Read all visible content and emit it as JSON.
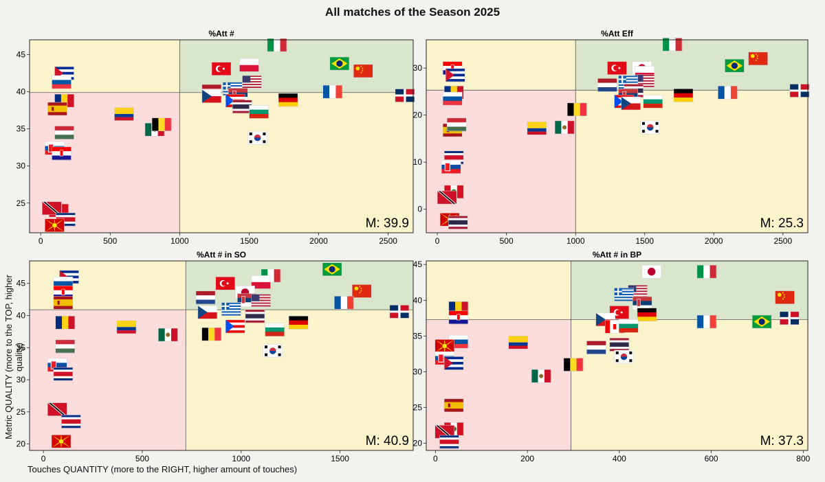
{
  "figure": {
    "title": "All matches of the Season 2025",
    "xlabel": "Touches QUANTITY (more to the RIGHT, higher amount of touches)",
    "ylabel": "Metric QUALITY (more to the TOP, higher quality)"
  },
  "colors": {
    "good": "#d9e6cc",
    "mid": "#fbf3cc",
    "bad": "#fddcdc",
    "background": "#f2f2ee"
  },
  "chart_data": [
    {
      "type": "scatter",
      "title": "%Att #",
      "median_label": "M: 39.9",
      "median_y": 39.9,
      "median_x": 1000,
      "xlim": [
        -80,
        2680
      ],
      "ylim": [
        21,
        47
      ],
      "xticks": [
        0,
        500,
        1000,
        1500,
        2000,
        2500
      ],
      "yticks": [
        25,
        30,
        35,
        40,
        45
      ],
      "points": [
        {
          "flag": "italy",
          "x": 1700,
          "y": 46.3
        },
        {
          "flag": "brazil",
          "x": 2150,
          "y": 43.8
        },
        {
          "flag": "china",
          "x": 2320,
          "y": 42.8
        },
        {
          "flag": "turkey",
          "x": 1300,
          "y": 43.1
        },
        {
          "flag": "poland",
          "x": 1500,
          "y": 43.6
        },
        {
          "flag": "usa",
          "x": 1520,
          "y": 41.3
        },
        {
          "flag": "cuba",
          "x": 170,
          "y": 42.5
        },
        {
          "flag": "slovenia",
          "x": 150,
          "y": 41.3
        },
        {
          "flag": "netherlands",
          "x": 1230,
          "y": 40.1
        },
        {
          "flag": "greece",
          "x": 1380,
          "y": 40.4
        },
        {
          "flag": "serbia",
          "x": 1420,
          "y": 39.6
        },
        {
          "flag": "czech",
          "x": 1230,
          "y": 39.4
        },
        {
          "flag": "puerto_rico",
          "x": 1400,
          "y": 38.8
        },
        {
          "flag": "thailand",
          "x": 1450,
          "y": 38.0
        },
        {
          "flag": "bulgaria",
          "x": 1570,
          "y": 37.3
        },
        {
          "flag": "france",
          "x": 2100,
          "y": 40.0
        },
        {
          "flag": "dominican",
          "x": 2620,
          "y": 39.5
        },
        {
          "flag": "germany",
          "x": 1780,
          "y": 38.9
        },
        {
          "flag": "romania",
          "x": 170,
          "y": 38.8
        },
        {
          "flag": "spain",
          "x": 120,
          "y": 37.7
        },
        {
          "flag": "colombia",
          "x": 600,
          "y": 37.0
        },
        {
          "flag": "mexico",
          "x": 820,
          "y": 34.9
        },
        {
          "flag": "belgium",
          "x": 870,
          "y": 35.6
        },
        {
          "flag": "hungary",
          "x": 170,
          "y": 34.5
        },
        {
          "flag": "korea",
          "x": 1560,
          "y": 33.8
        },
        {
          "flag": "slovakia",
          "x": 100,
          "y": 32.4
        },
        {
          "flag": "croatia",
          "x": 150,
          "y": 31.7
        },
        {
          "flag": "peru",
          "x": 130,
          "y": 24.0
        },
        {
          "flag": "trinidad",
          "x": 80,
          "y": 24.3
        },
        {
          "flag": "costa_rica",
          "x": 180,
          "y": 22.8
        },
        {
          "flag": "north_macedonia",
          "x": 100,
          "y": 22.0
        }
      ]
    },
    {
      "type": "scatter",
      "title": "%Att Eff",
      "median_label": "M: 25.3",
      "median_y": 25.3,
      "median_x": 1000,
      "xlim": [
        -80,
        2680
      ],
      "ylim": [
        -5,
        36
      ],
      "xticks": [
        0,
        500,
        1000,
        1500,
        2000,
        2500
      ],
      "yticks": [
        0,
        10,
        20,
        30
      ],
      "points": [
        {
          "flag": "italy",
          "x": 1700,
          "y": 35.0
        },
        {
          "flag": "china",
          "x": 2320,
          "y": 32.0
        },
        {
          "flag": "brazil",
          "x": 2150,
          "y": 30.5
        },
        {
          "flag": "turkey",
          "x": 1300,
          "y": 30.0
        },
        {
          "flag": "japan",
          "x": 1480,
          "y": 30.0
        },
        {
          "flag": "poland",
          "x": 1500,
          "y": 29.0
        },
        {
          "flag": "croatia",
          "x": 110,
          "y": 30.0
        },
        {
          "flag": "cuba",
          "x": 130,
          "y": 28.5
        },
        {
          "flag": "usa",
          "x": 1500,
          "y": 27.2
        },
        {
          "flag": "greece",
          "x": 1380,
          "y": 27.0
        },
        {
          "flag": "netherlands",
          "x": 1230,
          "y": 26.4
        },
        {
          "flag": "thailand",
          "x": 1420,
          "y": 25.2
        },
        {
          "flag": "romania",
          "x": 120,
          "y": 24.8
        },
        {
          "flag": "slovenia",
          "x": 110,
          "y": 23.5
        },
        {
          "flag": "dominican",
          "x": 2620,
          "y": 25.2
        },
        {
          "flag": "france",
          "x": 2100,
          "y": 24.8
        },
        {
          "flag": "germany",
          "x": 1780,
          "y": 24.2
        },
        {
          "flag": "serbia",
          "x": 1380,
          "y": 24.2
        },
        {
          "flag": "puerto_rico",
          "x": 1350,
          "y": 22.9
        },
        {
          "flag": "bulgaria",
          "x": 1560,
          "y": 22.9
        },
        {
          "flag": "czech",
          "x": 1400,
          "y": 22.5
        },
        {
          "flag": "belgium",
          "x": 1010,
          "y": 21.2
        },
        {
          "flag": "spain",
          "x": 110,
          "y": 16.8
        },
        {
          "flag": "hungary",
          "x": 140,
          "y": 18.0
        },
        {
          "flag": "colombia",
          "x": 720,
          "y": 17.2
        },
        {
          "flag": "mexico",
          "x": 920,
          "y": 17.4
        },
        {
          "flag": "korea",
          "x": 1540,
          "y": 17.4
        },
        {
          "flag": "costa_rica",
          "x": 120,
          "y": 11.0
        },
        {
          "flag": "slovakia",
          "x": 100,
          "y": 9.0
        },
        {
          "flag": "peru",
          "x": 120,
          "y": 3.7
        },
        {
          "flag": "trinidad",
          "x": 70,
          "y": 2.5
        },
        {
          "flag": "north_macedonia",
          "x": 90,
          "y": -2.2
        },
        {
          "flag": "thailand_2",
          "x": 150,
          "y": -2.8
        }
      ]
    },
    {
      "type": "scatter",
      "title": "%Att # in SO",
      "median_label": "M: 40.9",
      "median_y": 40.9,
      "median_x": 720,
      "xlim": [
        -70,
        1870
      ],
      "ylim": [
        19,
        48.5
      ],
      "xticks": [
        0,
        500,
        1000,
        1500
      ],
      "yticks": [
        20,
        25,
        30,
        35,
        40,
        45
      ],
      "points": [
        {
          "flag": "brazil",
          "x": 1460,
          "y": 47.2
        },
        {
          "flag": "italy",
          "x": 1150,
          "y": 46.2
        },
        {
          "flag": "cuba",
          "x": 130,
          "y": 46.0
        },
        {
          "flag": "slovenia",
          "x": 100,
          "y": 45.0
        },
        {
          "flag": "turkey",
          "x": 920,
          "y": 45.0
        },
        {
          "flag": "poland",
          "x": 1100,
          "y": 45.2
        },
        {
          "flag": "china",
          "x": 1610,
          "y": 43.8
        },
        {
          "flag": "croatia",
          "x": 100,
          "y": 43.6
        },
        {
          "flag": "spain",
          "x": 100,
          "y": 42.0
        },
        {
          "flag": "netherlands",
          "x": 820,
          "y": 42.8
        },
        {
          "flag": "japan",
          "x": 1020,
          "y": 43.6
        },
        {
          "flag": "serbia",
          "x": 1030,
          "y": 42.4
        },
        {
          "flag": "usa",
          "x": 1100,
          "y": 42.3
        },
        {
          "flag": "greece",
          "x": 950,
          "y": 41.0
        },
        {
          "flag": "france",
          "x": 1520,
          "y": 42.0
        },
        {
          "flag": "dominican",
          "x": 1800,
          "y": 40.6
        },
        {
          "flag": "czech",
          "x": 830,
          "y": 40.5
        },
        {
          "flag": "thailand",
          "x": 1070,
          "y": 39.9
        },
        {
          "flag": "romania",
          "x": 110,
          "y": 38.9
        },
        {
          "flag": "colombia",
          "x": 420,
          "y": 38.2
        },
        {
          "flag": "germany",
          "x": 1290,
          "y": 38.9
        },
        {
          "flag": "puerto_rico",
          "x": 970,
          "y": 38.3
        },
        {
          "flag": "bulgaria",
          "x": 1170,
          "y": 37.8
        },
        {
          "flag": "mexico",
          "x": 630,
          "y": 37.0
        },
        {
          "flag": "belgium",
          "x": 850,
          "y": 37.1
        },
        {
          "flag": "hungary",
          "x": 110,
          "y": 35.2
        },
        {
          "flag": "korea",
          "x": 1160,
          "y": 34.5
        },
        {
          "flag": "slovakia",
          "x": 70,
          "y": 32.3
        },
        {
          "flag": "costa_rica_2",
          "x": 100,
          "y": 30.9
        },
        {
          "flag": "trinidad",
          "x": 70,
          "y": 25.4
        },
        {
          "flag": "costa_rica",
          "x": 140,
          "y": 23.5
        },
        {
          "flag": "north_macedonia",
          "x": 90,
          "y": 20.4
        }
      ]
    },
    {
      "type": "scatter",
      "title": "%Att # in BP",
      "median_label": "M: 37.3",
      "median_y": 37.3,
      "median_x": 295,
      "xlim": [
        -20,
        810
      ],
      "ylim": [
        19,
        45.5
      ],
      "xticks": [
        0,
        200,
        400,
        600,
        800
      ],
      "yticks": [
        20,
        25,
        30,
        35,
        40,
        45
      ],
      "points": [
        {
          "flag": "japan",
          "x": 470,
          "y": 44.0
        },
        {
          "flag": "italy",
          "x": 590,
          "y": 44.0
        },
        {
          "flag": "usa",
          "x": 440,
          "y": 41.2
        },
        {
          "flag": "greece",
          "x": 410,
          "y": 40.8
        },
        {
          "flag": "china",
          "x": 760,
          "y": 40.4
        },
        {
          "flag": "serbia",
          "x": 450,
          "y": 39.6
        },
        {
          "flag": "romania",
          "x": 50,
          "y": 38.9
        },
        {
          "flag": "turkey",
          "x": 400,
          "y": 38.3
        },
        {
          "flag": "germany",
          "x": 460,
          "y": 38.0
        },
        {
          "flag": "czech",
          "x": 370,
          "y": 37.3
        },
        {
          "flag": "croatia",
          "x": 50,
          "y": 37.6
        },
        {
          "flag": "dominican",
          "x": 770,
          "y": 37.5
        },
        {
          "flag": "france",
          "x": 590,
          "y": 37.0
        },
        {
          "flag": "brazil",
          "x": 710,
          "y": 37.0
        },
        {
          "flag": "canada",
          "x": 390,
          "y": 36.3
        },
        {
          "flag": "bulgaria",
          "x": 420,
          "y": 36.4
        },
        {
          "flag": "colombia",
          "x": 180,
          "y": 34.1
        },
        {
          "flag": "slovenia",
          "x": 50,
          "y": 34.2
        },
        {
          "flag": "north_macedonia",
          "x": 20,
          "y": 33.6
        },
        {
          "flag": "thailand",
          "x": 400,
          "y": 33.8
        },
        {
          "flag": "netherlands",
          "x": 350,
          "y": 33.4
        },
        {
          "flag": "korea",
          "x": 410,
          "y": 32.1
        },
        {
          "flag": "slovakia",
          "x": 20,
          "y": 31.9
        },
        {
          "flag": "cuba",
          "x": 40,
          "y": 31.2
        },
        {
          "flag": "belgium",
          "x": 300,
          "y": 31.0
        },
        {
          "flag": "mexico",
          "x": 230,
          "y": 29.4
        },
        {
          "flag": "spain",
          "x": 40,
          "y": 25.3
        },
        {
          "flag": "peru",
          "x": 40,
          "y": 22.0
        },
        {
          "flag": "trinidad",
          "x": 20,
          "y": 21.6
        },
        {
          "flag": "costa_rica",
          "x": 30,
          "y": 20.2
        }
      ]
    }
  ]
}
